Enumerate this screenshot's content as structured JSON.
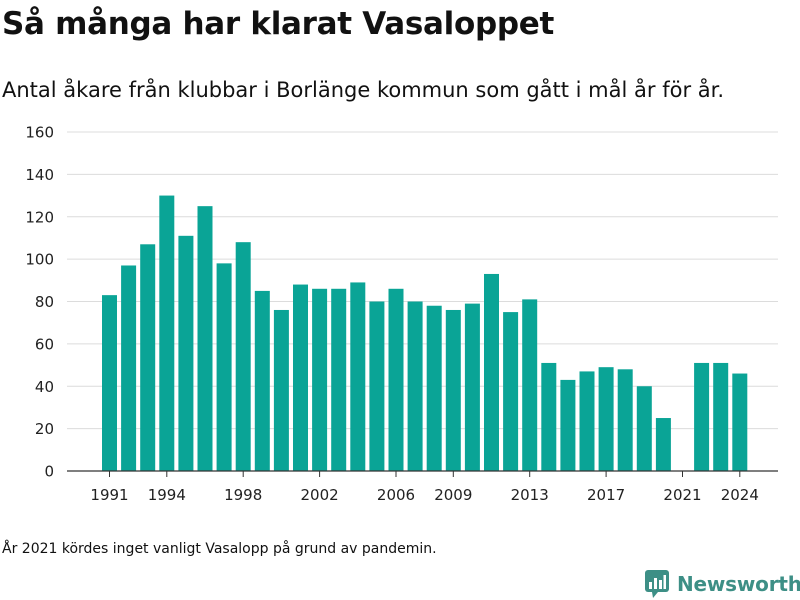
{
  "title": "Så många har klarat Vasaloppet",
  "subtitle": "Antal åkare från klubbar i Borlänge kommun som gått i mål år för år.",
  "note": "År 2021 kördes inget vanligt Vasalopp på grund av pandemin.",
  "brand": {
    "name": "Newsworthy",
    "icon": "newsworthy-logo-icon",
    "color": "#3d8f86"
  },
  "chart_data": {
    "type": "bar",
    "title": "",
    "xlabel": "",
    "ylabel": "",
    "color": "#0aa496",
    "grid": true,
    "categories": [
      1991,
      1992,
      1993,
      1994,
      1995,
      1996,
      1997,
      1998,
      1999,
      2000,
      2001,
      2002,
      2003,
      2004,
      2005,
      2006,
      2007,
      2008,
      2009,
      2010,
      2011,
      2012,
      2013,
      2014,
      2015,
      2016,
      2017,
      2018,
      2019,
      2020,
      2021,
      2022,
      2023,
      2024
    ],
    "values": [
      83,
      97,
      107,
      130,
      111,
      125,
      98,
      108,
      85,
      76,
      88,
      86,
      86,
      89,
      80,
      86,
      80,
      78,
      76,
      79,
      93,
      75,
      81,
      51,
      43,
      47,
      49,
      48,
      40,
      25,
      0,
      51,
      51,
      46
    ],
    "ylim": [
      0,
      160
    ],
    "yticks": [
      0,
      20,
      40,
      60,
      80,
      100,
      120,
      140,
      160
    ],
    "xticks": [
      1991,
      1994,
      1998,
      2002,
      2006,
      2009,
      2013,
      2017,
      2021,
      2024
    ]
  }
}
